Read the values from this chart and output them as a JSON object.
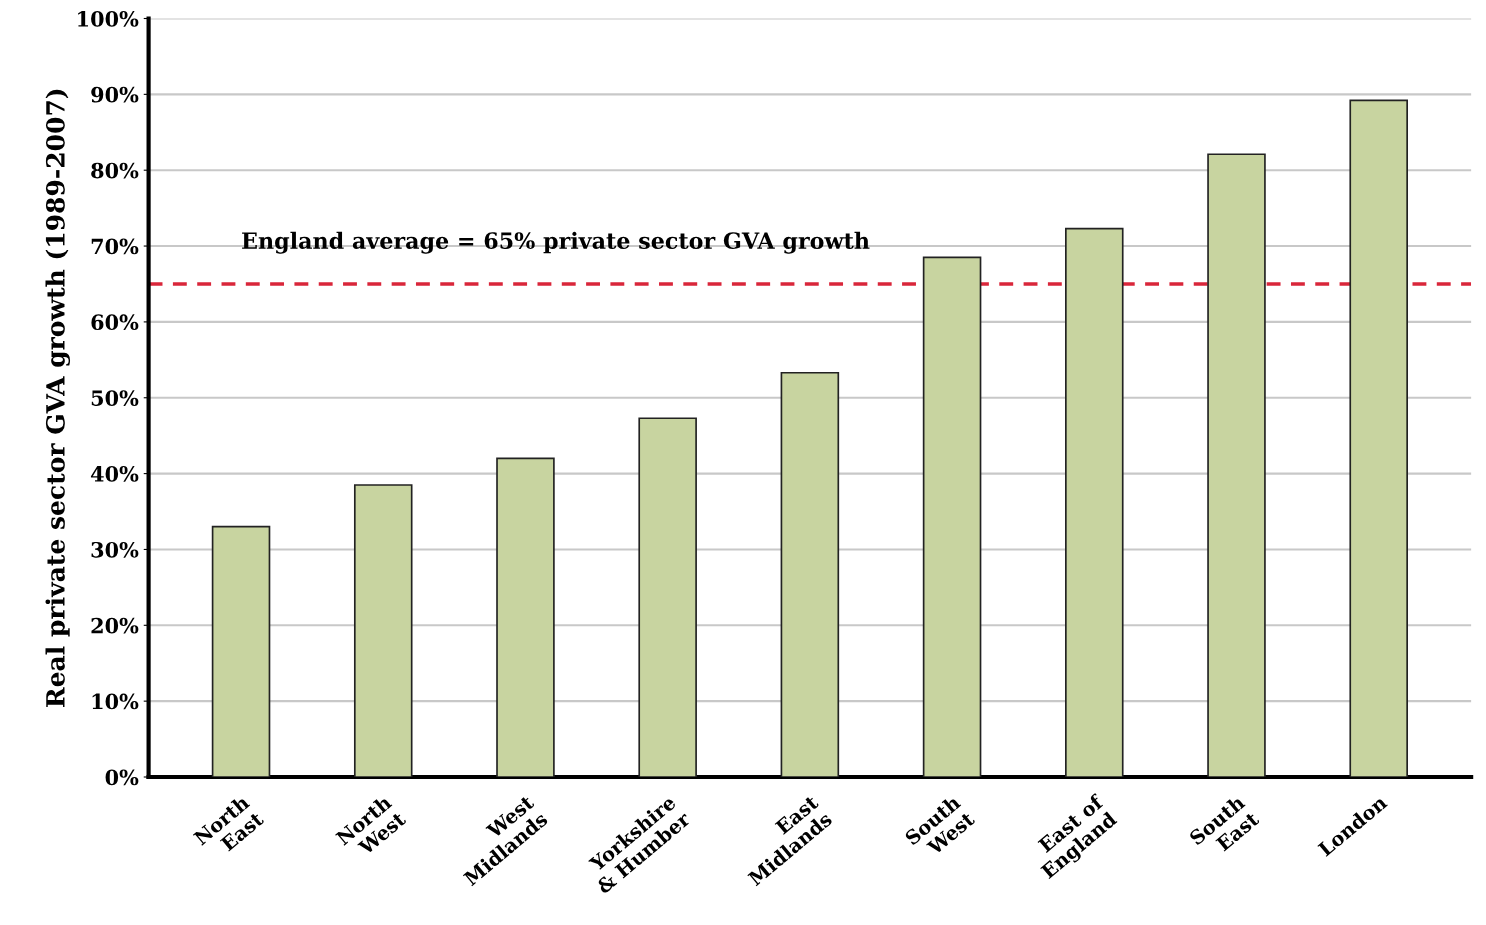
{
  "chart_data": {
    "type": "bar",
    "ylabel": "Real private sector GVA growth (1989-2007)",
    "categories": [
      "North\nEast",
      "North\nWest",
      "West\nMidlands",
      "Yorkshire\n& Humber",
      "East\nMidlands",
      "South\nWest",
      "East of\nEngland",
      "South\nEast",
      "London"
    ],
    "values": [
      33,
      38.5,
      42,
      47.3,
      53.3,
      68.5,
      72.3,
      82.1,
      89.2
    ],
    "color": "#c8d4a0",
    "ylim": [
      0,
      100
    ],
    "yticks": [
      {
        "value": 0,
        "label": "0%"
      },
      {
        "value": 10,
        "label": "10%"
      },
      {
        "value": 20,
        "label": "20%"
      },
      {
        "value": 30,
        "label": "30%"
      },
      {
        "value": 40,
        "label": "40%"
      },
      {
        "value": 50,
        "label": "50%"
      },
      {
        "value": 60,
        "label": "60%"
      },
      {
        "value": 70,
        "label": "70%"
      },
      {
        "value": 80,
        "label": "80%"
      },
      {
        "value": 90,
        "label": "90%"
      },
      {
        "value": 100,
        "label": "100%"
      }
    ],
    "grid": "y",
    "ref_lines": [
      {
        "axis": "y",
        "value": 65,
        "label": "England average = 65% private sector GVA growth",
        "color": "#d9263a",
        "line_style": "dashed"
      }
    ]
  }
}
